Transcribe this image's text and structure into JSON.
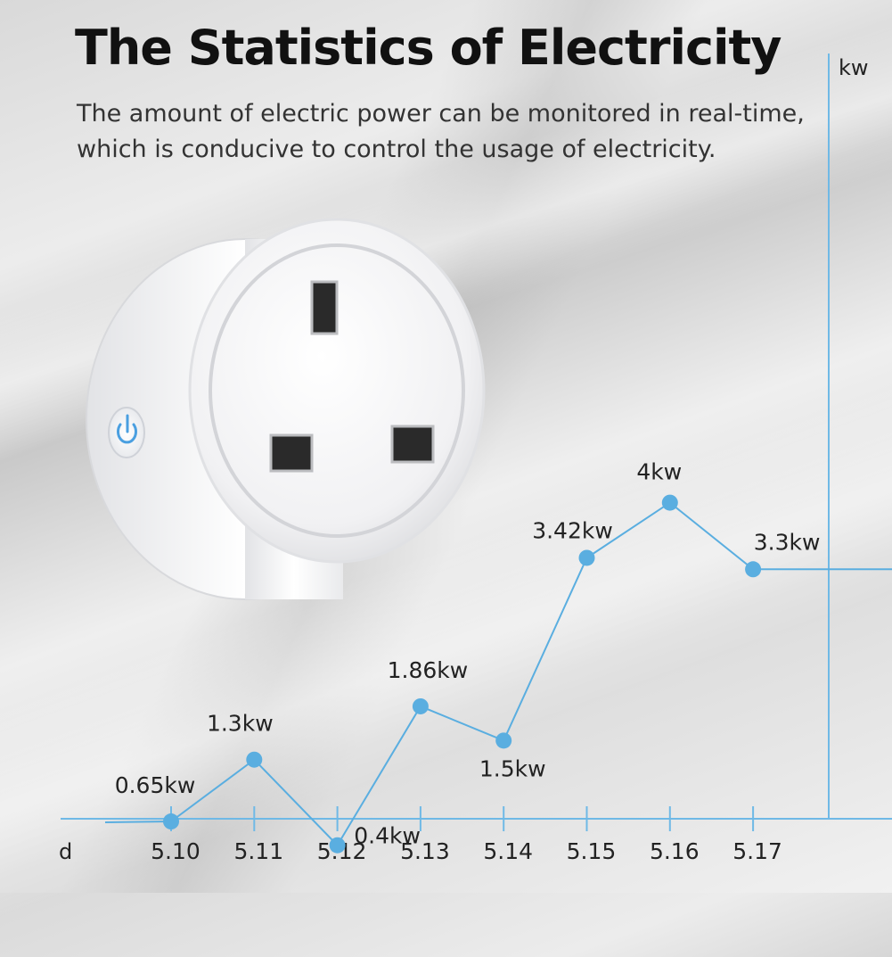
{
  "header": {
    "title": "The Statistics of Electricity",
    "subtitle_lines": [
      "The amount of electric power can be monitored in real-time,",
      "which is conducive to control the usage of electricity."
    ]
  },
  "chart_data": {
    "type": "line",
    "xlabel": "d",
    "ylabel": "kw",
    "categories": [
      "5.10",
      "5.11",
      "5.12",
      "5.13",
      "5.14",
      "5.15",
      "5.16",
      "5.17"
    ],
    "series": [
      {
        "values": [
          0.65,
          1.3,
          0.4,
          1.86,
          1.5,
          3.42,
          4,
          3.3
        ]
      }
    ],
    "data_labels": [
      "0.65kw",
      "1.3kw",
      "0.4kw",
      "1.86kw",
      "1.5kw",
      "3.42kw",
      "4kw",
      "3.3kw"
    ],
    "grid": false
  },
  "colors": {
    "line": "#5aaee0",
    "axis": "#6fb9e6",
    "button_accent": "#4a9fe0"
  },
  "icons": {
    "power": "power-icon"
  }
}
